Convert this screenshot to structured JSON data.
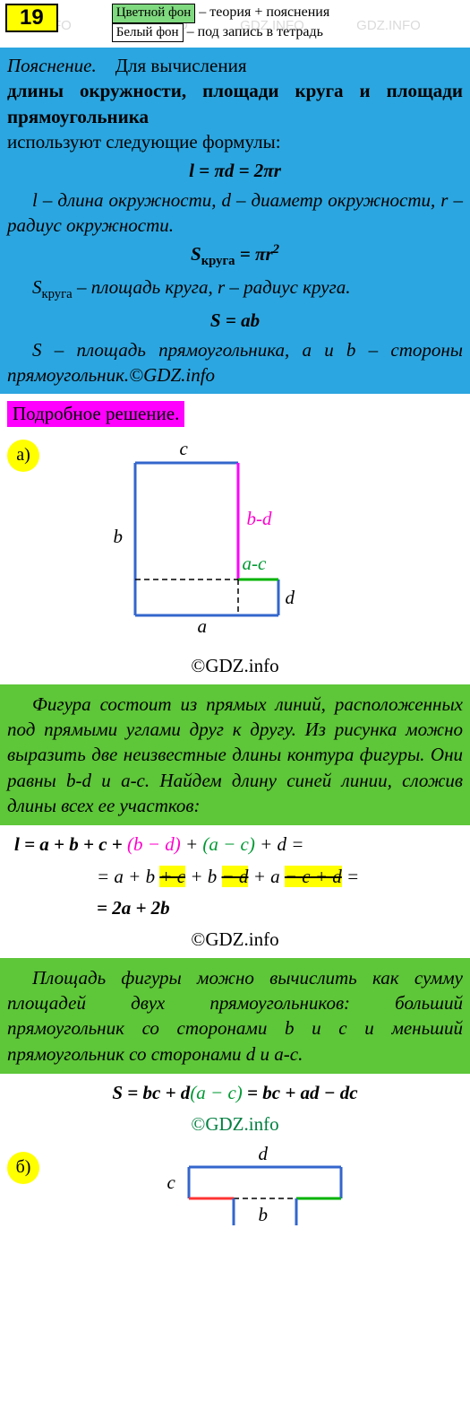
{
  "header": {
    "problem_number": "19",
    "legend_colored_label": "Цветной фон",
    "legend_colored_text": " – теория + пояснения",
    "legend_white_label": "Белый фон",
    "legend_white_text": " – под запись в тетрадь"
  },
  "colors": {
    "blue_bg": "#2ca6e0",
    "green_bg": "#5ec639",
    "yellow": "#ffff00",
    "magenta": "#ff00ff",
    "pink_text": "#ff00cc",
    "green_text": "#009933",
    "blue_line": "#3366cc",
    "red_line": "#ff3333",
    "magenta_line": "#ff00ff",
    "green_line": "#00b300"
  },
  "theory": {
    "explanation_label": "Пояснение.",
    "intro_1": "Для вычисления",
    "bold_line": "длины окружности, площади круга и площади прямоугольника",
    "intro_2": "используют следующие формулы:",
    "formula_1": "l = πd = 2πr",
    "desc_1_a": "l – длина окружности, ",
    "desc_1_b": "d – диаметр окружности, ",
    "desc_1_c": "r – радиус окружности.",
    "formula_2_pre": "S",
    "formula_2_sub": "круга",
    "formula_2_post": " = πr",
    "formula_2_sup": "2",
    "desc_2": "Sкруга – площадь круга, r – радиус круга.",
    "formula_3": "S = ab",
    "desc_3": "S – площадь прямоугольника, a и b – стороны прямоугольник.©GDZ.info"
  },
  "solution": {
    "header": "Подробное решение.",
    "part_a": "а)",
    "part_b": "б)"
  },
  "diagram_a": {
    "label_c": "c",
    "label_b": "b",
    "label_a": "a",
    "label_d": "d",
    "label_bd": "b-d",
    "label_ac": "a-c",
    "copyright": "©GDZ.info"
  },
  "green1": {
    "text": "Фигура состоит из прямых линий, расположенных под прямыми углами друг к другу. Из рисунка можно выразить две неизвестные длины контура фигуры. Они равны b-d и a-c. Найдем длину синей линии, сложив длины всех ее участков:"
  },
  "math1": {
    "l1_pre": "l = a + b + c + ",
    "l1_pink": "(b − d)",
    "l1_mid": " + ",
    "l1_green": "(a − c)",
    "l1_post": " + d =",
    "l2_pre": "= a + b ",
    "l2_s1": "+ c",
    "l2_mid1": " + b ",
    "l2_s2": "− d",
    "l2_mid2": " + a ",
    "l2_s3": "− c",
    "l2_s4": " + d",
    "l2_post": " =",
    "l3": "= 2a + 2b",
    "copyright": "©GDZ.info"
  },
  "green2": {
    "text": "Площадь фигуры можно вычислить как сумму площадей двух прямоугольников: больший прямоугольник со сторонами b и c и меньший прямоугольник со сторонами d и a-c."
  },
  "math2": {
    "pre": "S = bc + d",
    "green": "(a − c)",
    "post": " = bc + ad − dc",
    "copyright": "©GDZ.info"
  },
  "diagram_b": {
    "label_d": "d",
    "label_c": "c",
    "label_b": "b"
  },
  "watermark": "GDZ.INFO"
}
